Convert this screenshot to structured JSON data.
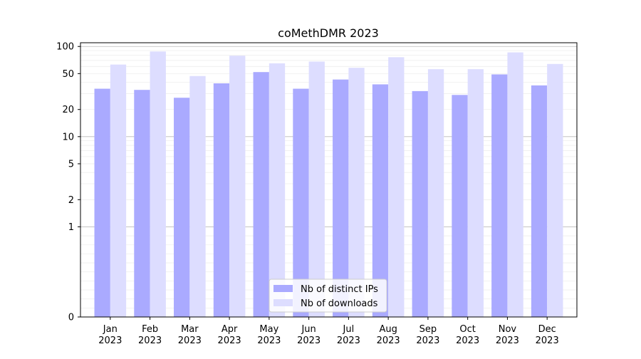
{
  "chart_data": {
    "type": "bar",
    "title": "coMethDMR 2023",
    "xlabel": "",
    "ylabel": "",
    "y_scale": "symlog",
    "ylim": [
      0,
      110
    ],
    "y_ticks": [
      0,
      1,
      2,
      5,
      10,
      20,
      50,
      100
    ],
    "y_tick_labels": [
      "0",
      "1",
      "2",
      "5",
      "10",
      "20",
      "50",
      "100"
    ],
    "grid": true,
    "legend_position": "bottom-center",
    "categories": [
      "Jan\n2023",
      "Feb\n2023",
      "Mar\n2023",
      "Apr\n2023",
      "May\n2023",
      "Jun\n2023",
      "Jul\n2023",
      "Aug\n2023",
      "Sep\n2023",
      "Oct\n2023",
      "Nov\n2023",
      "Dec\n2023"
    ],
    "series": [
      {
        "name": "Nb of distinct IPs",
        "color": "#aaaaff",
        "values": [
          34,
          33,
          27,
          39,
          52,
          34,
          43,
          38,
          32,
          29,
          49,
          37
        ]
      },
      {
        "name": "Nb of downloads",
        "color": "#ddddff",
        "values": [
          63,
          88,
          47,
          79,
          65,
          68,
          58,
          76,
          56,
          56,
          86,
          64
        ]
      }
    ]
  }
}
